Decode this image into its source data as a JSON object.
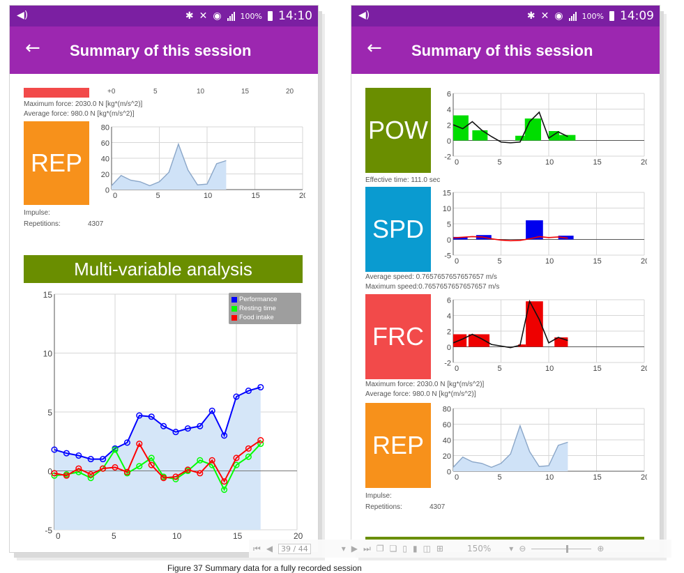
{
  "colors": {
    "statusbar": "#7b1fa2",
    "appbar": "#9c27b0",
    "pow": "#6a8e00",
    "spd": "#0a9bd0",
    "frc": "#f24a4a",
    "rep": "#f7911b",
    "banner": "#6a8e00"
  },
  "left": {
    "status": {
      "battery": "100%",
      "time": "14:10"
    },
    "appbar": {
      "title": "Summary of this session",
      "back_icon": "arrow-left-icon"
    },
    "frc_ticks": [
      "+0",
      "5",
      "10",
      "15",
      "20"
    ],
    "frc_info": {
      "max": "Maximum force:  2030.0 N [kg*(m/s^2)]",
      "avg": "Average force:   980.0 N [kg*(m/s^2)]"
    },
    "rep": {
      "label": "REP",
      "impulse": "Impulse:",
      "rep_label": "Repetitions:",
      "rep_value": "4307"
    },
    "banner": "Multi-variable analysis",
    "legend": [
      {
        "name": "Performance",
        "color": "#0000ff"
      },
      {
        "name": "Resting time",
        "color": "#00ff00"
      },
      {
        "name": "Food intake",
        "color": "#ff0000"
      }
    ]
  },
  "right": {
    "status": {
      "battery": "100%",
      "time": "14:09"
    },
    "appbar": {
      "title": "Summary of this session",
      "back_icon": "arrow-left-icon"
    },
    "pow": {
      "label": "POW",
      "info": "Effective time:     111.0 sec"
    },
    "spd": {
      "label": "SPD",
      "info1": "Average speed:   0.7657657657657657 m/s",
      "info2": "Maximum speed:0.7657657657657657 m/s"
    },
    "frc": {
      "label": "FRC",
      "info1": "Maximum force:  2030.0 N [kg*(m/s^2)]",
      "info2": "Average force:   980.0 N [kg*(m/s^2)]"
    },
    "rep": {
      "label": "REP",
      "impulse": "Impulse:",
      "rep_label": "Repetitions:",
      "rep_value": "4307"
    }
  },
  "pdf_toolbar": {
    "page": "39 / 44",
    "zoom": "150%"
  },
  "caption": "Figure 37 Summary data for a fully recorded session",
  "chart_data": [
    {
      "id": "rep",
      "type": "area",
      "x": [
        0,
        1,
        2,
        3,
        4,
        5,
        6,
        7,
        8,
        9,
        10,
        11,
        12
      ],
      "values": [
        5,
        18,
        12,
        10,
        5,
        10,
        22,
        58,
        25,
        6,
        7,
        33,
        37
      ],
      "xlim": [
        0,
        20
      ],
      "ylim": [
        0,
        80
      ],
      "xticks": [
        "0",
        "5",
        "10",
        "15",
        "20"
      ],
      "yticks": [
        "0",
        "20",
        "40",
        "60",
        "80"
      ]
    },
    {
      "id": "multivariable",
      "type": "line",
      "x": [
        0,
        1,
        2,
        3,
        4,
        5,
        6,
        7,
        8,
        9,
        10,
        11,
        12,
        13,
        14,
        15,
        16,
        17
      ],
      "xlim": [
        0,
        20
      ],
      "ylim": [
        -5,
        15
      ],
      "xticks": [
        "0",
        "5",
        "10",
        "15",
        "20"
      ],
      "yticks": [
        "-5",
        "0",
        "5",
        "10",
        "15"
      ],
      "series": [
        {
          "name": "Performance",
          "color": "#0000ff",
          "values": [
            1.8,
            1.5,
            1.3,
            1.0,
            1.0,
            1.9,
            2.4,
            4.7,
            4.6,
            3.8,
            3.3,
            3.6,
            3.8,
            5.1,
            3.0,
            6.3,
            6.8,
            7.1
          ]
        },
        {
          "name": "Resting time",
          "color": "#00ff00",
          "values": [
            -0.4,
            -0.3,
            -0.1,
            -0.6,
            0.2,
            1.8,
            -0.2,
            0.4,
            1.1,
            -0.5,
            -0.7,
            0.0,
            0.9,
            0.5,
            -1.6,
            0.5,
            1.2,
            2.3
          ]
        },
        {
          "name": "Food intake",
          "color": "#ff0000",
          "values": [
            -0.2,
            -0.4,
            0.2,
            -0.3,
            0.2,
            0.3,
            -0.1,
            2.3,
            0.5,
            -0.6,
            -0.5,
            0.1,
            -0.2,
            0.9,
            -0.9,
            1.1,
            1.9,
            2.6
          ]
        }
      ]
    },
    {
      "id": "pow",
      "type": "bar",
      "x": [
        0,
        1,
        2,
        3,
        4,
        5,
        6,
        7,
        8,
        9,
        10,
        11,
        12
      ],
      "ylim": [
        -2,
        6
      ],
      "xlim": [
        0,
        20
      ],
      "xticks": [
        "0",
        "5",
        "10",
        "15",
        "20"
      ],
      "yticks": [
        "-2",
        "0",
        "2",
        "4",
        "6"
      ],
      "bar_color": "#00dd00",
      "bars": [
        {
          "x0": 0,
          "x1": 1.6,
          "v": 3.2
        },
        {
          "x0": 2,
          "x1": 3.6,
          "v": 1.3
        },
        {
          "x0": 6.5,
          "x1": 7.5,
          "v": 0.6
        },
        {
          "x0": 7.5,
          "x1": 9.2,
          "v": 2.8
        },
        {
          "x0": 10,
          "x1": 11.1,
          "v": 1.2
        },
        {
          "x0": 11.1,
          "x1": 12.8,
          "v": 0.7
        }
      ],
      "line": [
        2.0,
        1.5,
        2.4,
        1.3,
        0.5,
        -0.2,
        -0.3,
        -0.2,
        2.4,
        3.6,
        0.3,
        1.1,
        0.5
      ]
    },
    {
      "id": "spd",
      "type": "bar",
      "x": [
        0,
        1,
        2,
        3,
        4,
        5,
        6,
        7,
        8,
        9,
        10,
        11,
        12
      ],
      "ylim": [
        -5,
        15
      ],
      "xlim": [
        0,
        20
      ],
      "xticks": [
        "0",
        "5",
        "10",
        "15",
        "20"
      ],
      "yticks": [
        "-5",
        "0",
        "5",
        "10",
        "15"
      ],
      "bar_color": "#0000ee",
      "bars": [
        {
          "x0": 0,
          "x1": 1.5,
          "v": 0.8
        },
        {
          "x0": 2.4,
          "x1": 4,
          "v": 1.4
        },
        {
          "x0": 7.6,
          "x1": 9.4,
          "v": 6.1
        },
        {
          "x0": 11,
          "x1": 12.6,
          "v": 1.2
        }
      ],
      "line": [
        0.5,
        0.7,
        0.9,
        0.8,
        0.2,
        -0.2,
        -0.4,
        -0.3,
        0.2,
        0.9,
        0.6,
        0.8,
        0.4
      ]
    },
    {
      "id": "frc",
      "type": "bar",
      "x": [
        0,
        1,
        2,
        3,
        4,
        5,
        6,
        7,
        8,
        9,
        10,
        11,
        12
      ],
      "ylim": [
        -2,
        6
      ],
      "xlim": [
        0,
        20
      ],
      "xticks": [
        "0",
        "5",
        "10",
        "15",
        "20"
      ],
      "yticks": [
        "-2",
        "0",
        "2",
        "4",
        "6"
      ],
      "bar_color": "#ee0000",
      "bars": [
        {
          "x0": 0,
          "x1": 1.4,
          "v": 1.6
        },
        {
          "x0": 1.6,
          "x1": 3.8,
          "v": 1.6
        },
        {
          "x0": 6.8,
          "x1": 7.6,
          "v": 0.3
        },
        {
          "x0": 7.6,
          "x1": 9.4,
          "v": 5.8
        },
        {
          "x0": 10.6,
          "x1": 12,
          "v": 1.2
        }
      ],
      "line": [
        0.5,
        1.0,
        1.6,
        1.0,
        0.3,
        0.1,
        -0.1,
        0.2,
        5.8,
        3.5,
        0.5,
        1.2,
        0.8
      ]
    }
  ]
}
